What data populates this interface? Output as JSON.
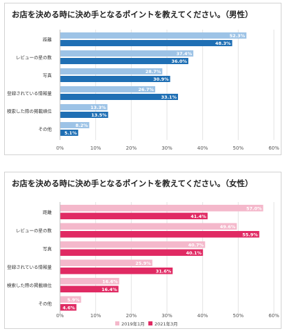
{
  "chart_data": [
    {
      "type": "bar",
      "orientation": "horizontal",
      "title": "お店を決める時に決め手となるポイントを教えてください。（男性）",
      "categories": [
        "距離",
        "レビューの星の数",
        "写真",
        "登録されている情報量",
        "検索した際の掲載順位",
        "その他"
      ],
      "series": [
        {
          "name": "2019年1月",
          "values": [
            52.3,
            37.4,
            28.7,
            26.7,
            13.3,
            8.2
          ],
          "labels": [
            "52.3%",
            "37.4%",
            "28.7%",
            "26.7%",
            "13.3%",
            "8.2%"
          ],
          "color": "#9dc3e6"
        },
        {
          "name": "2021年3月",
          "values": [
            48.3,
            36.0,
            30.9,
            33.1,
            13.5,
            5.1
          ],
          "labels": [
            "48.3%",
            "36.0%",
            "30.9%",
            "33.1%",
            "13.5%",
            "5.1%"
          ],
          "color": "#1f6fb4"
        }
      ],
      "xlim": [
        0,
        60
      ],
      "ticks": [
        "0%",
        "10%",
        "20%",
        "30%",
        "40%",
        "50%",
        "60%"
      ],
      "grid": true,
      "legend": "bottom"
    },
    {
      "type": "bar",
      "orientation": "horizontal",
      "title": "お店を決める時に決め手となるポイントを教えてください。（女性）",
      "categories": [
        "距離",
        "レビューの星の数",
        "写真",
        "登録されている情報量",
        "検索した際の掲載順位",
        "その他"
      ],
      "series": [
        {
          "name": "2019年1月",
          "values": [
            57.0,
            49.6,
            40.7,
            25.9,
            16.6,
            5.9
          ],
          "labels": [
            "57.0%",
            "49.6%",
            "40.7%",
            "25.9%",
            "16.6%",
            "5.9%"
          ],
          "color": "#f4b8cb"
        },
        {
          "name": "2021年3月",
          "values": [
            41.4,
            55.9,
            40.1,
            31.6,
            16.4,
            4.6
          ],
          "labels": [
            "41.4%",
            "55.9%",
            "40.1%",
            "31.6%",
            "16.4%",
            "4.6%"
          ],
          "color": "#e02a63"
        }
      ],
      "xlim": [
        0,
        60
      ],
      "ticks": [
        "0%",
        "10%",
        "20%",
        "30%",
        "40%",
        "50%",
        "60%"
      ],
      "grid": true,
      "legend": "bottom"
    }
  ]
}
